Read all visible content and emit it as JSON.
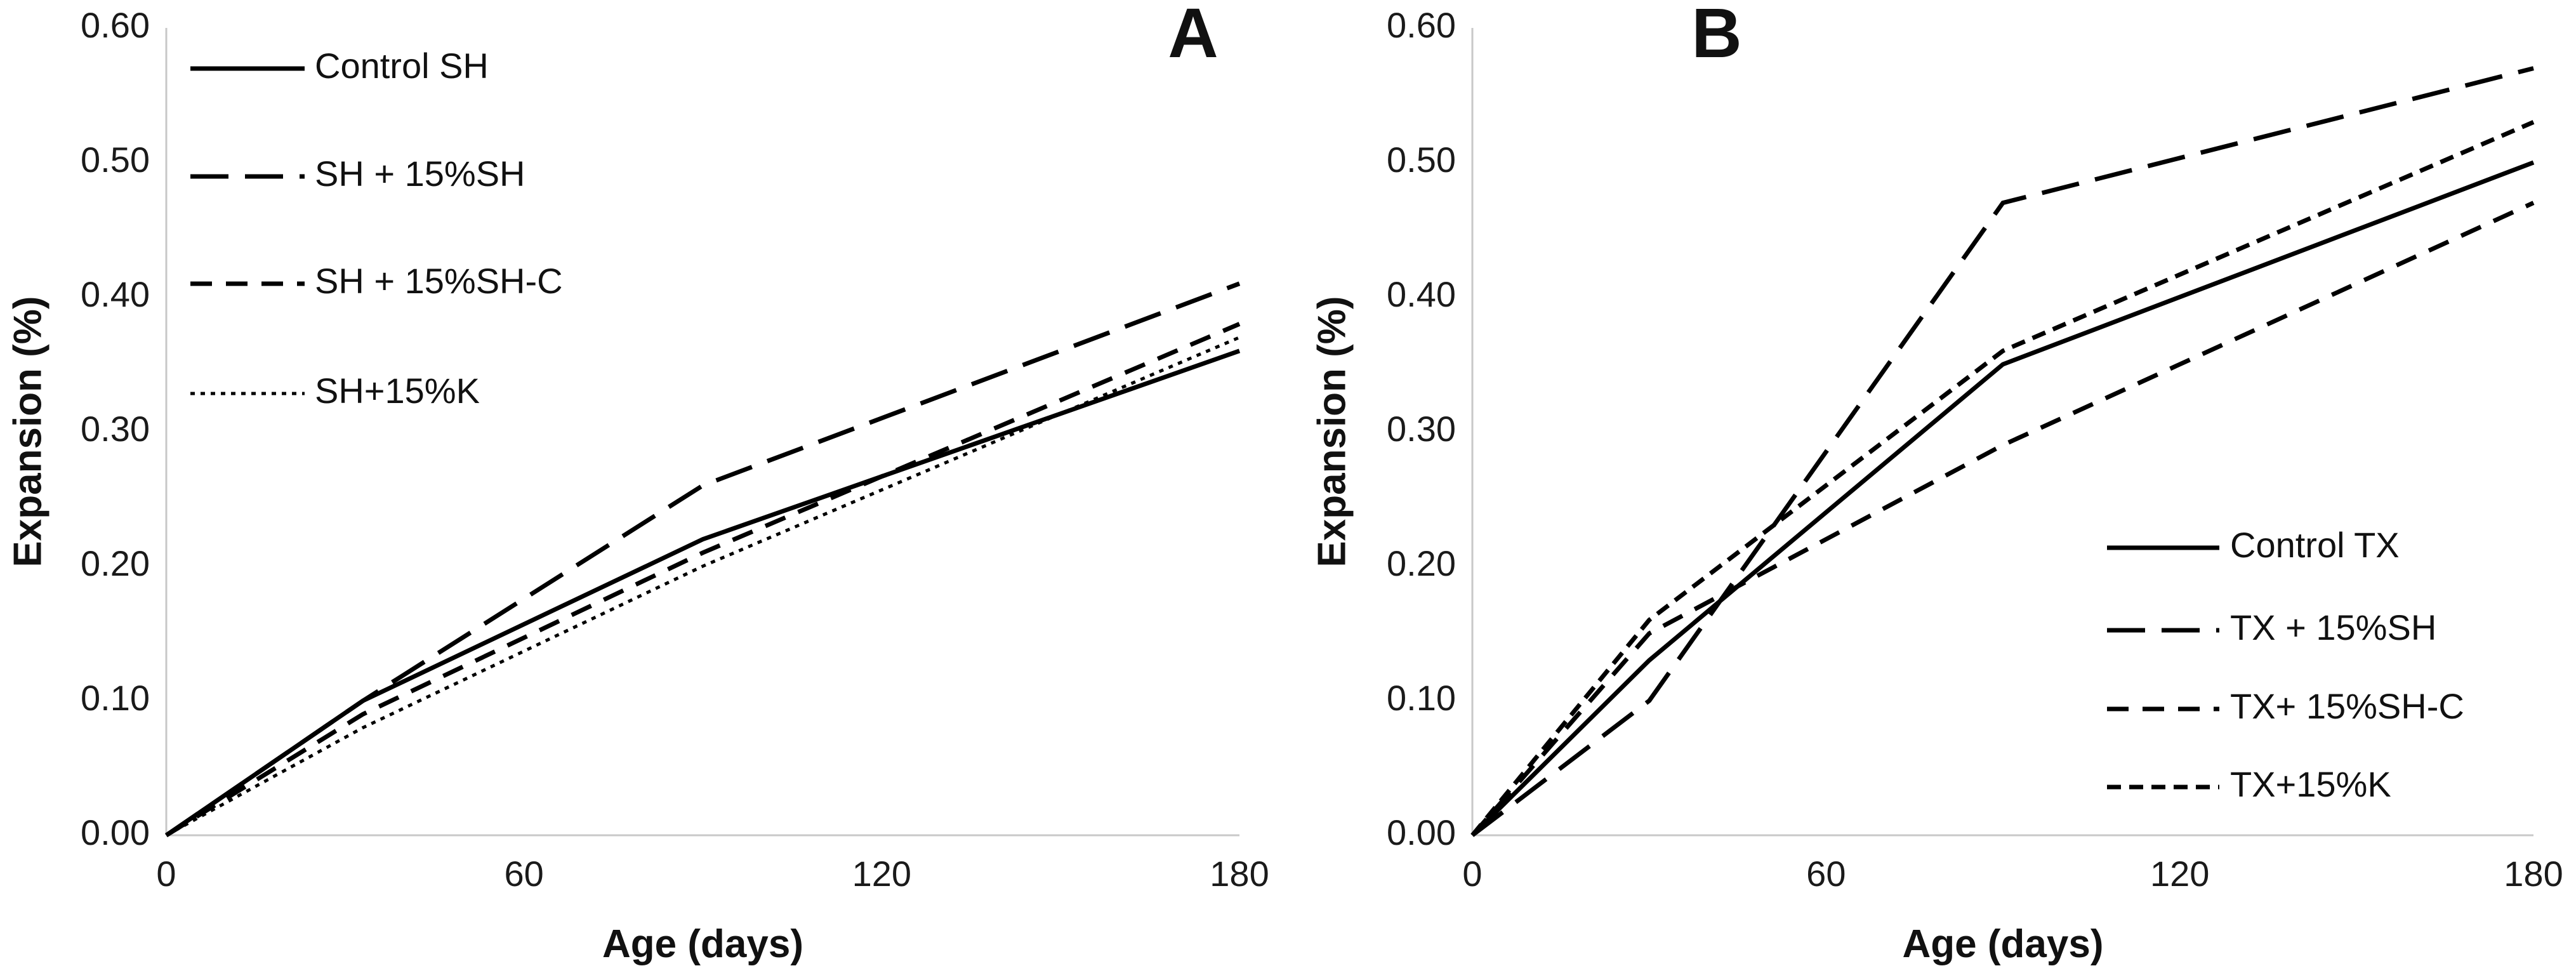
{
  "chart_data": [
    {
      "type": "line",
      "panel_label": "A",
      "title": "",
      "xlabel": "Age (days)",
      "ylabel": "Expansion (%)",
      "xlim": [
        0,
        180
      ],
      "ylim": [
        0,
        0.6
      ],
      "x_ticks": [
        "0",
        "60",
        "120",
        "180"
      ],
      "y_ticks": [
        "0.00",
        "0.10",
        "0.20",
        "0.30",
        "0.40",
        "0.50",
        "0.60"
      ],
      "grid": false,
      "legend_position": "top-left",
      "series": [
        {
          "name": "Control SH",
          "style": "solid",
          "x": [
            0,
            33,
            90,
            180
          ],
          "y": [
            0,
            0.1,
            0.22,
            0.36
          ]
        },
        {
          "name": "SH + 15%SH",
          "style": "long-dash",
          "x": [
            0,
            33,
            90,
            180
          ],
          "y": [
            0,
            0.1,
            0.26,
            0.41
          ]
        },
        {
          "name": "SH + 15%SH-C",
          "style": "dash",
          "x": [
            0,
            33,
            90,
            180
          ],
          "y": [
            0,
            0.09,
            0.21,
            0.38
          ]
        },
        {
          "name": "SH+15%K",
          "style": "dot",
          "x": [
            0,
            33,
            90,
            180
          ],
          "y": [
            0,
            0.08,
            0.2,
            0.37
          ]
        }
      ]
    },
    {
      "type": "line",
      "panel_label": "B",
      "title": "",
      "xlabel": "Age (days)",
      "ylabel": "Expansion (%)",
      "xlim": [
        0,
        180
      ],
      "ylim": [
        0,
        0.6
      ],
      "x_ticks": [
        "0",
        "60",
        "120",
        "180"
      ],
      "y_ticks": [
        "0.00",
        "0.10",
        "0.20",
        "0.30",
        "0.40",
        "0.50",
        "0.60"
      ],
      "grid": false,
      "legend_position": "bottom-right",
      "series": [
        {
          "name": "Control TX",
          "style": "solid",
          "x": [
            0,
            30,
            90,
            180
          ],
          "y": [
            0,
            0.13,
            0.35,
            0.5
          ]
        },
        {
          "name": "TX + 15%SH",
          "style": "long-dash",
          "x": [
            0,
            30,
            90,
            180
          ],
          "y": [
            0,
            0.1,
            0.47,
            0.57
          ]
        },
        {
          "name": "TX+ 15%SH-C",
          "style": "dash",
          "x": [
            0,
            30,
            90,
            180
          ],
          "y": [
            0,
            0.15,
            0.29,
            0.47
          ]
        },
        {
          "name": "TX+15%K",
          "style": "short-dash",
          "x": [
            0,
            30,
            90,
            180
          ],
          "y": [
            0,
            0.16,
            0.36,
            0.53
          ]
        }
      ]
    }
  ]
}
